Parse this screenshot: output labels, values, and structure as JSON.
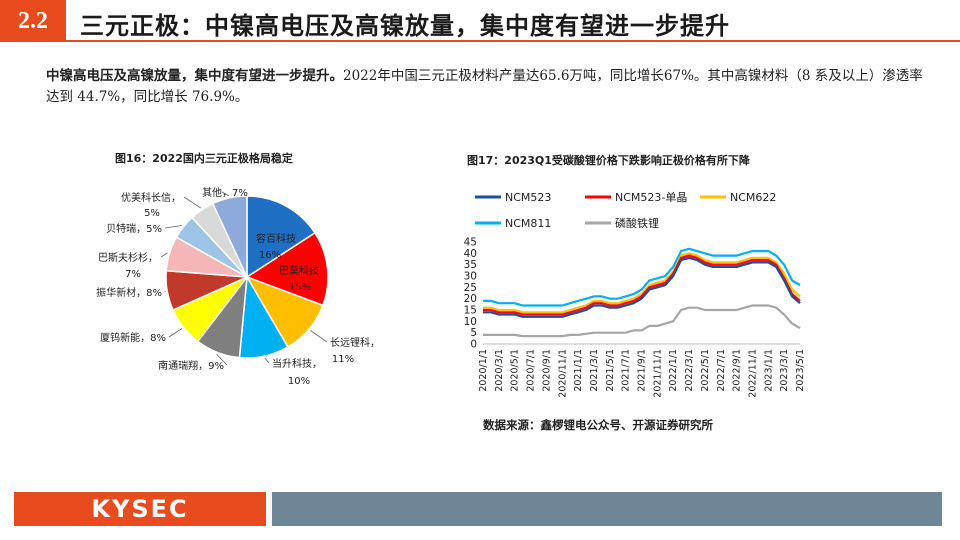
{
  "header": {
    "section_number": "2.2",
    "title": "三元正极：中镍高电压及高镍放量，集中度有望进一步提升"
  },
  "summary": {
    "bold": "中镍高电压及高镍放量，集中度有望进一步提升。",
    "text": "2022年中国三元正极材料产量达65.6万吨，同比增长67%。其中高镍材料（8 系及以上）渗透率达到 44.7%，同比增长 76.9%。"
  },
  "figure16": {
    "caption": "图16：2022国内三元正极格局稳定"
  },
  "figure17": {
    "caption": "图17：2023Q1受碳酸锂价格下跌影响正极价格有所下降"
  },
  "source": "数据来源：鑫椤锂电公众号、开源证券研究所",
  "footer": {
    "logo": "KYSEC"
  },
  "chart_data": [
    {
      "type": "pie",
      "slices": [
        {
          "name": "容百科技",
          "label": "16%",
          "value": 16,
          "color": "#1f6fc5"
        },
        {
          "name": "巴莫科技",
          "label": "15%",
          "value": 15,
          "color": "#ff0000"
        },
        {
          "name": "长远锂科",
          "label": "11%",
          "value": 11,
          "color": "#ffbf00"
        },
        {
          "name": "当升科技",
          "label": "10%",
          "value": 10,
          "color": "#00b0f0"
        },
        {
          "name": "南通瑞翔",
          "label": "9%",
          "value": 9,
          "color": "#7f7f7f"
        },
        {
          "name": "厦钨新能",
          "label": "8%",
          "value": 8,
          "color": "#ffff00"
        },
        {
          "name": "振华新材",
          "label": "8%",
          "value": 8,
          "color": "#c0392b"
        },
        {
          "name": "巴斯夫杉杉",
          "label": "7%",
          "value": 7,
          "color": "#f4b6b6"
        },
        {
          "name": "贝特瑞",
          "label": "5%",
          "value": 5,
          "color": "#9dc3e6"
        },
        {
          "name": "优美科长信",
          "label": "5%",
          "value": 5,
          "color": "#d9d9d9"
        },
        {
          "name": "其他",
          "label": "7%",
          "value": 7,
          "color": "#8ea9db"
        }
      ]
    },
    {
      "type": "line",
      "ylim": [
        0,
        45
      ],
      "yticks": [
        0,
        5,
        10,
        15,
        20,
        25,
        30,
        35,
        40,
        45
      ],
      "xticks": [
        "2020/1/1",
        "2020/3/1",
        "2020/5/1",
        "2020/7/1",
        "2020/9/1",
        "2020/11/1",
        "2021/1/1",
        "2021/3/1",
        "2021/5/1",
        "2021/7/1",
        "2021/9/1",
        "2021/11/1",
        "2022/1/1",
        "2022/3/1",
        "2022/5/1",
        "2022/7/1",
        "2022/9/1",
        "2022/11/1",
        "2023/1/1",
        "2023/3/1",
        "2023/5/1"
      ],
      "x": [
        "2020/1",
        "2020/2",
        "2020/3",
        "2020/4",
        "2020/5",
        "2020/6",
        "2020/7",
        "2020/8",
        "2020/9",
        "2020/10",
        "2020/11",
        "2020/12",
        "2021/1",
        "2021/2",
        "2021/3",
        "2021/4",
        "2021/5",
        "2021/6",
        "2021/7",
        "2021/8",
        "2021/9",
        "2021/10",
        "2021/11",
        "2021/12",
        "2022/1",
        "2022/2",
        "2022/3",
        "2022/4",
        "2022/5",
        "2022/6",
        "2022/7",
        "2022/8",
        "2022/9",
        "2022/10",
        "2022/11",
        "2022/12",
        "2023/1",
        "2023/2",
        "2023/3",
        "2023/4",
        "2023/5"
      ],
      "series": [
        {
          "name": "NCM523",
          "color": "#1f4e9c",
          "values": [
            14,
            14,
            13,
            13,
            13,
            12,
            12,
            12,
            12,
            12,
            12,
            13,
            14,
            15,
            17,
            17,
            16,
            16,
            17,
            18,
            20,
            24,
            25,
            26,
            30,
            37,
            38,
            37,
            35,
            34,
            34,
            34,
            34,
            35,
            36,
            36,
            36,
            34,
            28,
            21,
            18
          ]
        },
        {
          "name": "NCM523-单晶",
          "color": "#ff0000",
          "values": [
            15,
            15,
            14,
            14,
            14,
            13,
            13,
            13,
            13,
            13,
            13,
            14,
            15,
            16,
            18,
            18,
            17,
            17,
            18,
            19,
            21,
            25,
            26,
            27,
            31,
            38,
            39,
            38,
            36,
            35,
            35,
            35,
            35,
            36,
            37,
            37,
            37,
            35,
            29,
            22,
            19
          ]
        },
        {
          "name": "NCM622",
          "color": "#ffc000",
          "values": [
            16,
            16,
            15,
            15,
            15,
            14,
            14,
            14,
            14,
            14,
            14,
            15,
            16,
            17,
            19,
            19,
            18,
            18,
            19,
            20,
            22,
            26,
            27,
            28,
            32,
            39,
            40,
            39,
            37,
            36,
            36,
            36,
            36,
            37,
            38,
            38,
            38,
            36,
            31,
            24,
            21
          ]
        },
        {
          "name": "NCM811",
          "color": "#00b0f0",
          "values": [
            19,
            19,
            18,
            18,
            18,
            17,
            17,
            17,
            17,
            17,
            17,
            18,
            19,
            20,
            21,
            21,
            20,
            20,
            21,
            22,
            24,
            28,
            29,
            30,
            34,
            41,
            42,
            41,
            40,
            39,
            39,
            39,
            39,
            40,
            41,
            41,
            41,
            39,
            35,
            28,
            26
          ]
        },
        {
          "name": "磷酸铁锂",
          "color": "#a6a6a6",
          "values": [
            4,
            4,
            4,
            4,
            4,
            3.5,
            3.5,
            3.5,
            3.5,
            3.5,
            3.5,
            4,
            4,
            4.5,
            5,
            5,
            5,
            5,
            5,
            6,
            6,
            8,
            8,
            9,
            10,
            15,
            16,
            16,
            15,
            15,
            15,
            15,
            15,
            16,
            17,
            17,
            17,
            16,
            13,
            9,
            7
          ]
        }
      ]
    }
  ]
}
